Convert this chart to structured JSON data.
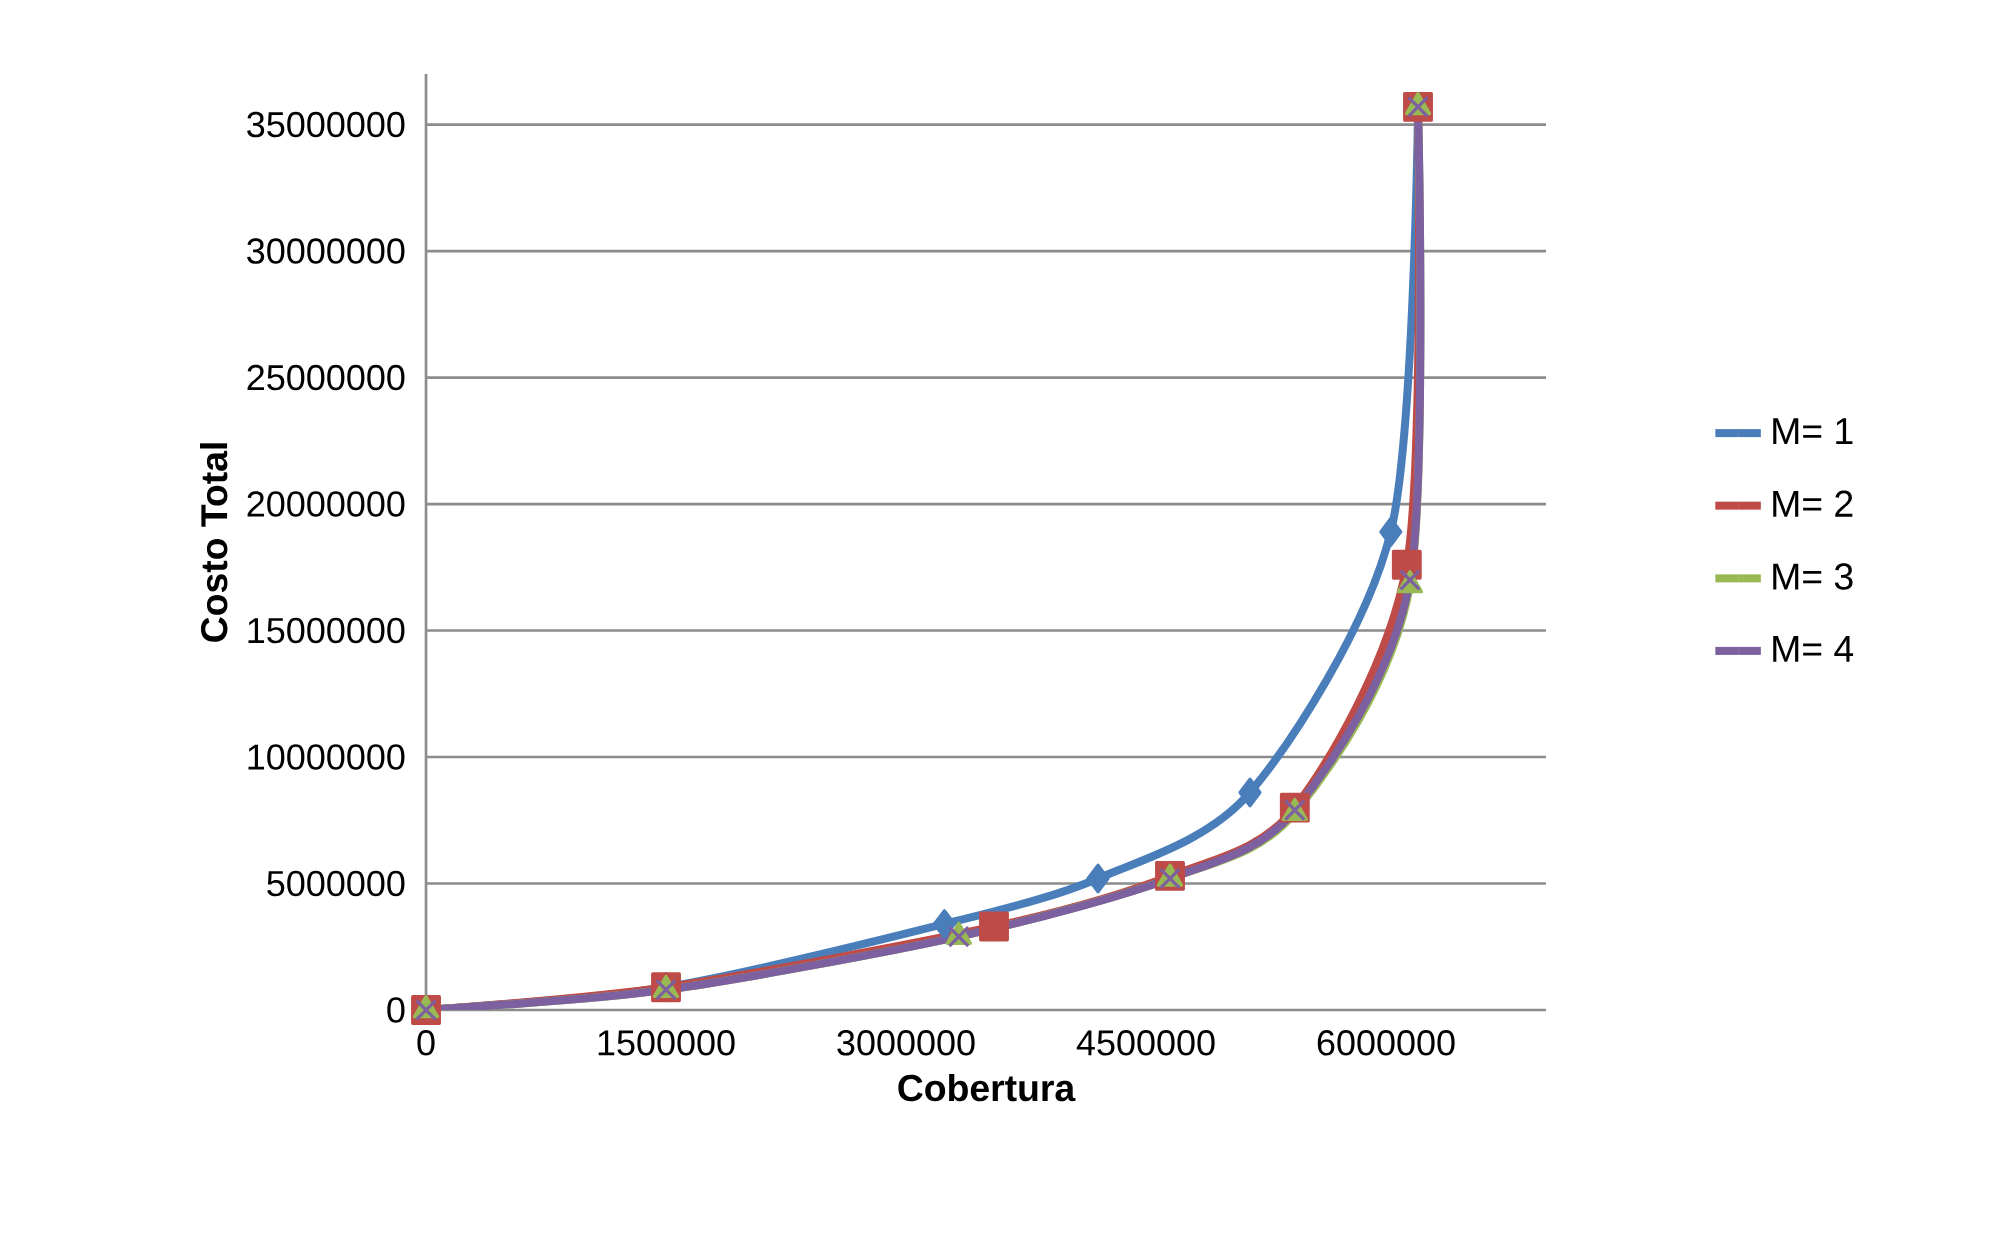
{
  "chart_data": {
    "type": "line",
    "xlabel": "Cobertura",
    "ylabel": "Costo Total",
    "xlim": [
      0,
      7000000
    ],
    "xticks": [
      0,
      1500000,
      3000000,
      4500000,
      6000000
    ],
    "ylim": [
      0,
      37000000
    ],
    "yticks": [
      0,
      5000000,
      10000000,
      15000000,
      20000000,
      25000000,
      30000000,
      35000000
    ],
    "grid": "y",
    "legend": "right",
    "line_style": "solid",
    "series": [
      {
        "name": "M= 1",
        "color": "#4a7ebb",
        "marker": "diamond",
        "x": [
          0,
          1500000,
          3240000,
          4200000,
          5150000,
          6030000,
          6200000
        ],
        "values": [
          0,
          900000,
          3400000,
          5200000,
          8600000,
          18900000,
          35700000
        ]
      },
      {
        "name": "M= 2",
        "color": "#be4b48",
        "marker": "square",
        "x": [
          0,
          1500000,
          3550000,
          4650000,
          5430000,
          6130000,
          6200000
        ],
        "values": [
          0,
          900000,
          3300000,
          5300000,
          8000000,
          17600000,
          35700000
        ]
      },
      {
        "name": "M= 3",
        "color": "#98b954",
        "marker": "triangle",
        "x": [
          0,
          1500000,
          3330000,
          4650000,
          5430000,
          6150000,
          6200000
        ],
        "values": [
          0,
          800000,
          2900000,
          5200000,
          7800000,
          16800000,
          35700000
        ]
      },
      {
        "name": "M= 4",
        "color": "#7d60a0",
        "marker": "cross",
        "x": [
          0,
          1500000,
          3330000,
          4650000,
          5430000,
          6150000,
          6200000
        ],
        "values": [
          0,
          800000,
          2900000,
          5200000,
          7900000,
          17000000,
          35700000
        ]
      }
    ]
  }
}
